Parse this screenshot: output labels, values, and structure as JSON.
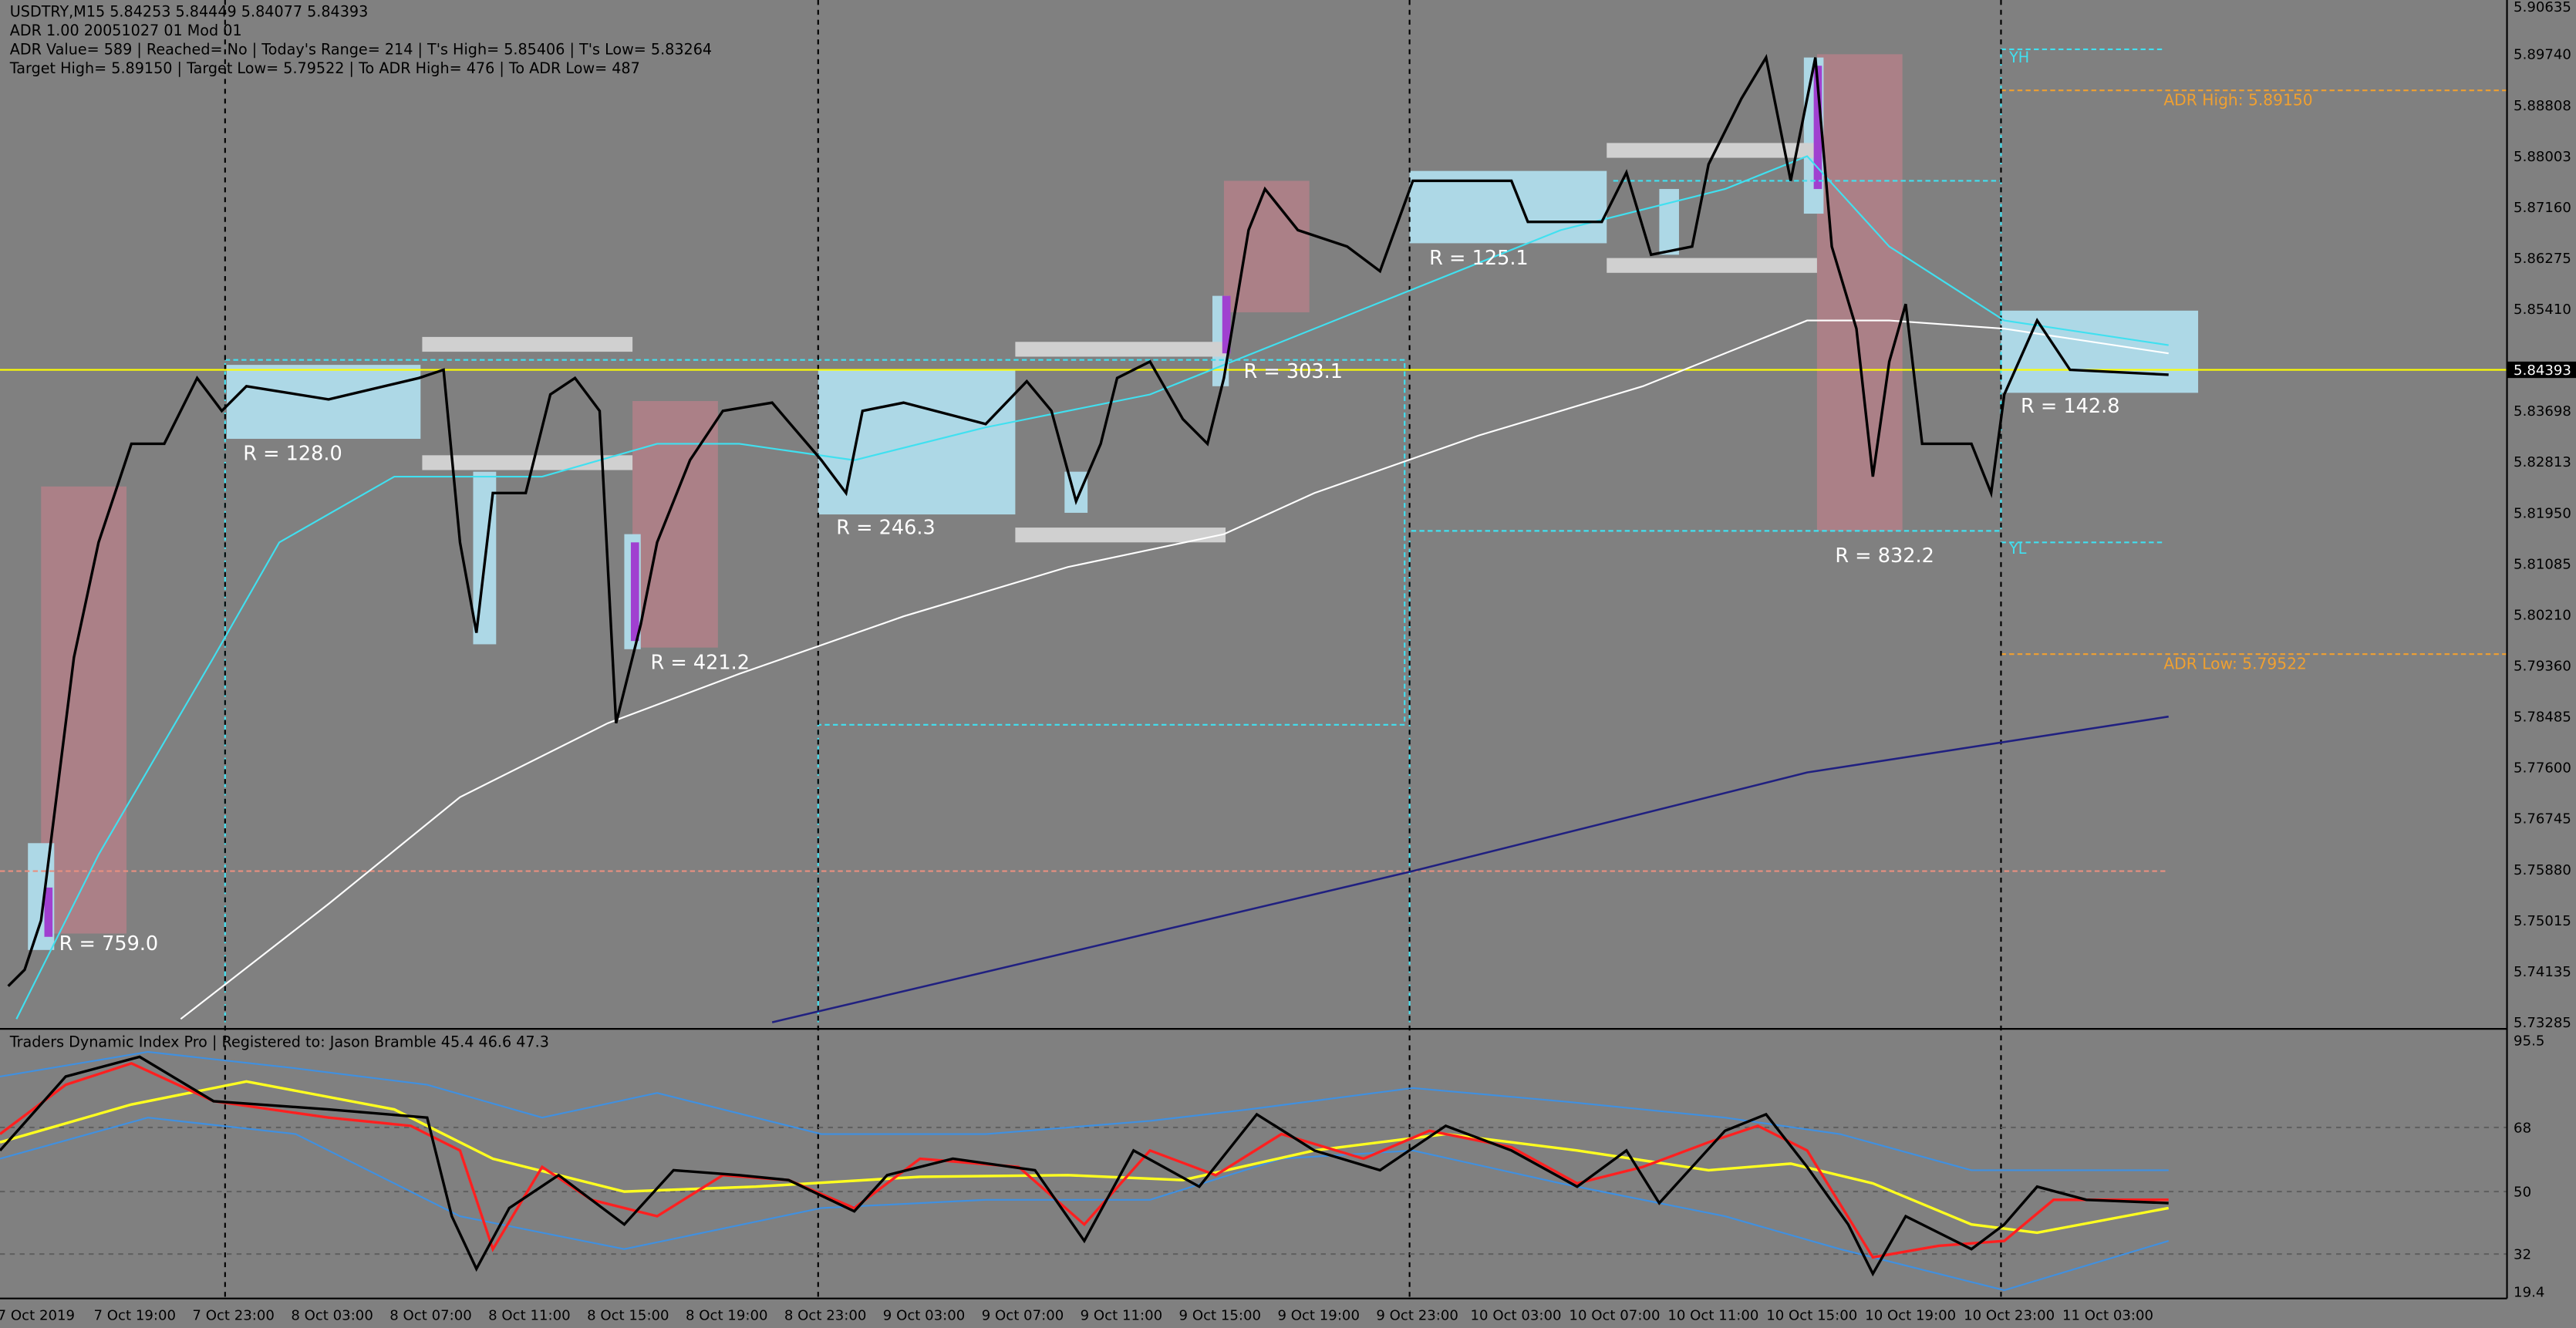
{
  "header": {
    "lines": [
      "USDTRY,M15  5.84253 5.84449 5.84077 5.84393",
      "ADR 1.00 20051027 01 Mod 01",
      "ADR Value= 589   | Reached= No   | Today's Range= 214   | T's High= 5.85406   | T's Low= 5.83264",
      "Target High= 5.89150   | Target Low= 5.79522   | To ADR High= 476   | To ADR Low= 487"
    ]
  },
  "price_axis": {
    "labels": [
      "5.90635",
      "5.89740",
      "5.88808",
      "5.88003",
      "5.87160",
      "5.86275",
      "5.85410",
      "5.84393",
      "5.83698",
      "5.82813",
      "5.81950",
      "5.81085",
      "5.80210",
      "5.79360",
      "5.78485",
      "5.77600",
      "5.76745",
      "5.75880",
      "5.75015",
      "5.74135",
      "5.73285"
    ]
  },
  "indicator_axis": {
    "labels": [
      "95.5",
      "68",
      "50",
      "32",
      "19.4"
    ]
  },
  "time_axis": {
    "labels": [
      "7 Oct 2019",
      "7 Oct 19:00",
      "7 Oct 23:00",
      "8 Oct 03:00",
      "8 Oct 07:00",
      "8 Oct 11:00",
      "8 Oct 15:00",
      "8 Oct 19:00",
      "8 Oct 23:00",
      "9 Oct 03:00",
      "9 Oct 07:00",
      "9 Oct 11:00",
      "9 Oct 15:00",
      "9 Oct 19:00",
      "9 Oct 23:00",
      "10 Oct 03:00",
      "10 Oct 07:00",
      "10 Oct 11:00",
      "10 Oct 15:00",
      "10 Oct 19:00",
      "10 Oct 23:00",
      "11 Oct 03:00"
    ]
  },
  "range_labels": [
    "R = 759.0",
    "R = 128.0",
    "R = 421.2",
    "R = 246.3",
    "R = 303.1",
    "R = 125.1",
    "R = 832.2",
    "R = 142.8"
  ],
  "adr_labels": [
    "ADR High: 5.89150",
    "ADR Low: 5.79522"
  ],
  "yesterday_labels": [
    "YH",
    "YL"
  ],
  "indicator": {
    "title": "Traders Dynamic Index Pro | Registered to: Jason Bramble 45.4 46.6 47.3"
  }
}
